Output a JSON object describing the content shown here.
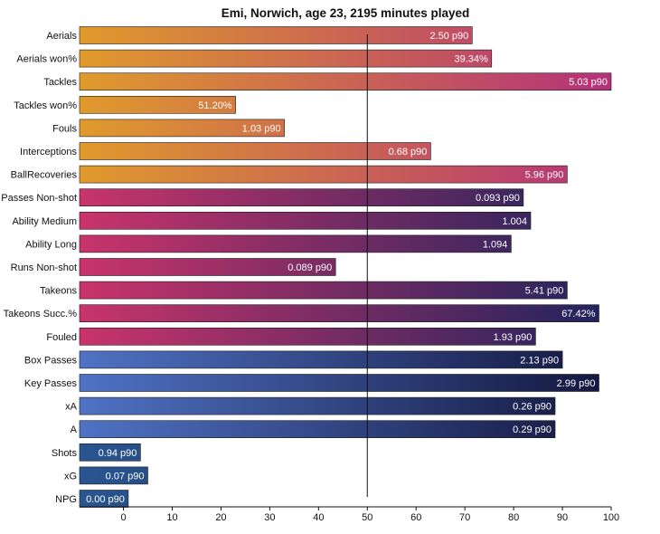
{
  "chart_data": {
    "type": "bar",
    "orientation": "horizontal",
    "title": "Emi, Norwich, age 23, 2195 minutes played",
    "xlabel": "",
    "ylabel": "",
    "xlim": [
      -9,
      100
    ],
    "xticks": [
      0,
      10,
      20,
      30,
      40,
      50,
      60,
      70,
      80,
      90,
      100
    ],
    "reference_line": 50,
    "bars": [
      {
        "category": "Aerials",
        "value": 71.5,
        "label": "2.50 p90",
        "group": "defending"
      },
      {
        "category": "Aerials won%",
        "value": 75.5,
        "label": "39.34%",
        "group": "defending"
      },
      {
        "category": "Tackles",
        "value": 100,
        "label": "5.03 p90",
        "group": "defending"
      },
      {
        "category": "Tackles won%",
        "value": 23,
        "label": "51.20%",
        "group": "defending"
      },
      {
        "category": "Fouls",
        "value": 33,
        "label": "1.03 p90",
        "group": "defending"
      },
      {
        "category": "Interceptions",
        "value": 63,
        "label": "0.68 p90",
        "group": "defending"
      },
      {
        "category": "BallRecoveries",
        "value": 91,
        "label": "5.96 p90",
        "group": "defending"
      },
      {
        "category": "Passes Non-shot",
        "value": 82,
        "label": "0.093 p90",
        "group": "possession"
      },
      {
        "category": "Ability Medium",
        "value": 83.5,
        "label": "1.004",
        "group": "possession"
      },
      {
        "category": "Ability Long",
        "value": 79.5,
        "label": "1.094",
        "group": "possession"
      },
      {
        "category": "Runs Non-shot",
        "value": 43.5,
        "label": "0.089 p90",
        "group": "possession"
      },
      {
        "category": "Takeons",
        "value": 91,
        "label": "5.41 p90",
        "group": "possession"
      },
      {
        "category": "Takeons Succ.%",
        "value": 97.5,
        "label": "67.42%",
        "group": "possession"
      },
      {
        "category": "Fouled",
        "value": 84.5,
        "label": "1.93 p90",
        "group": "possession"
      },
      {
        "category": "Box Passes",
        "value": 90,
        "label": "2.13 p90",
        "group": "creation"
      },
      {
        "category": "Key Passes",
        "value": 97.5,
        "label": "2.99 p90",
        "group": "creation"
      },
      {
        "category": "xA",
        "value": 88.5,
        "label": "0.26 p90",
        "group": "creation"
      },
      {
        "category": "A",
        "value": 88.5,
        "label": "0.29 p90",
        "group": "creation"
      },
      {
        "category": "Shots",
        "value": 3.5,
        "label": "0.94 p90",
        "group": "shooting"
      },
      {
        "category": "xG",
        "value": 5,
        "label": "0.07 p90",
        "group": "shooting"
      },
      {
        "category": "NPG",
        "value": 1,
        "label": "0.00 p90",
        "group": "shooting"
      }
    ],
    "group_colors": {
      "defending": [
        "#e09a2c",
        "#b4317a"
      ],
      "possession": [
        "#c9346b",
        "#1f235c"
      ],
      "creation": [
        "#4f72c4",
        "#13163d"
      ],
      "shooting": [
        "#2a5590",
        "#0e2149"
      ]
    }
  }
}
